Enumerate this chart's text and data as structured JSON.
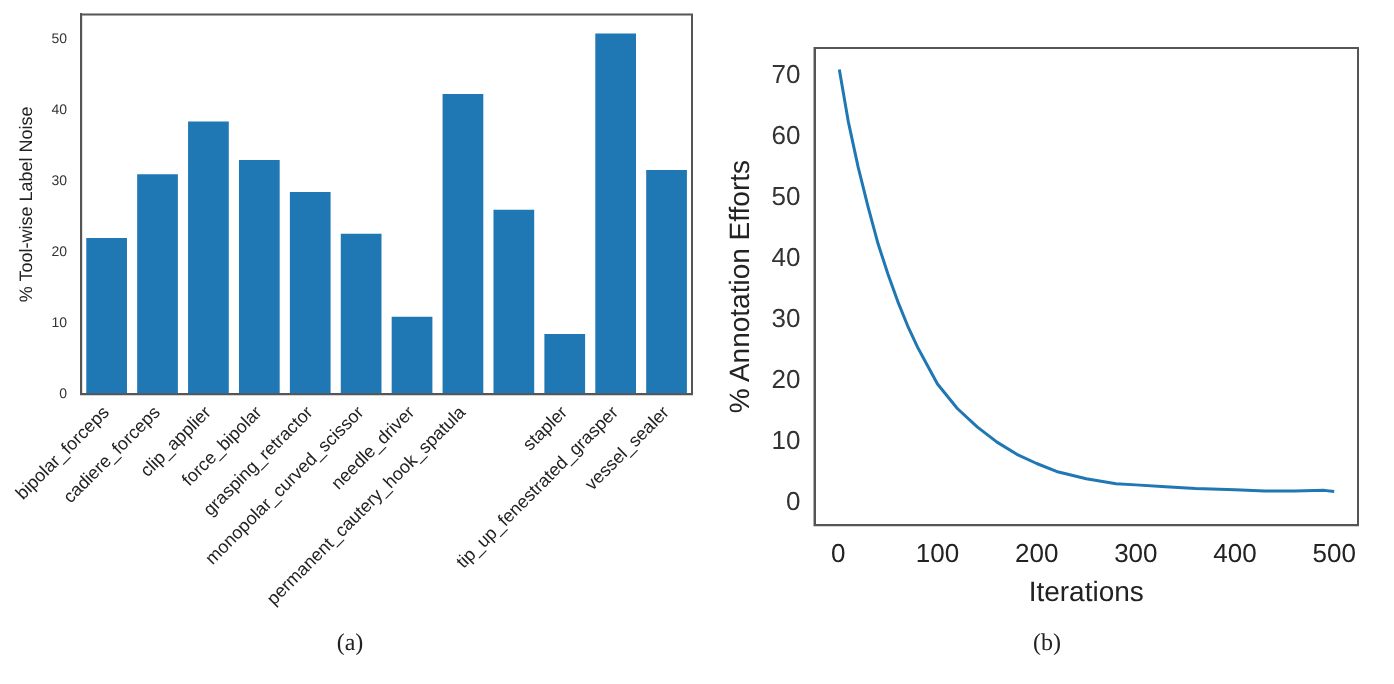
{
  "chart_data": [
    {
      "type": "bar",
      "ylabel": "% Tool-wise Label Noise",
      "categories": [
        "bipolar_forceps",
        "cadiere_forceps",
        "clip_applier",
        "force_bipolar",
        "grasping_retractor",
        "monopolar_curved_scissor",
        "needle_driver",
        "permanent_cautery_hook_spatula",
        null,
        "stapler",
        "tip_up_fenestrated_grasper",
        "vessel_sealer"
      ],
      "values": [
        22,
        31,
        38.4,
        33,
        28.5,
        22.6,
        10.9,
        42.3,
        26,
        8.5,
        50.8,
        31.6
      ],
      "color": "#1f77b4",
      "ylim": [
        0,
        53.5
      ],
      "yticks": [
        0,
        10,
        20,
        30,
        40,
        50
      ],
      "grid": false,
      "legend": false,
      "annotations": [
        "(a)"
      ]
    },
    {
      "type": "line",
      "xlabel": "Iterations",
      "ylabel": "% Annotation Efforts",
      "x": [
        1,
        10,
        20,
        30,
        40,
        50,
        60,
        70,
        80,
        90,
        100,
        120,
        140,
        160,
        180,
        200,
        220,
        250,
        280,
        300,
        330,
        360,
        400,
        430,
        460,
        490,
        500
      ],
      "series": [
        {
          "color": "#1f77b4",
          "values": [
            71,
            62.5,
            55,
            48.5,
            42.5,
            37.5,
            33,
            29,
            25.5,
            22.5,
            19.5,
            15.5,
            12.5,
            10,
            8,
            6.5,
            5.2,
            4,
            3.2,
            3,
            2.7,
            2.4,
            2.2,
            2,
            2,
            2.1,
            1.9
          ]
        }
      ],
      "xlim": [
        -24,
        524
      ],
      "xticks": [
        0,
        100,
        200,
        300,
        400,
        500
      ],
      "ylim": [
        -3.6,
        74.5
      ],
      "yticks": [
        0,
        10,
        20,
        30,
        40,
        50,
        60,
        70
      ],
      "grid": false,
      "legend": false,
      "marker": "none",
      "annotations": [
        "(b)"
      ]
    }
  ]
}
